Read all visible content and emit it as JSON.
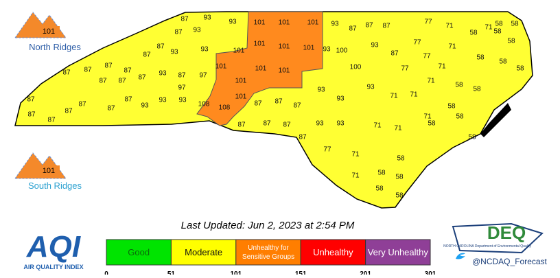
{
  "header": {
    "updated": "Last Updated: Jun 2, 2023 at 2:54 PM"
  },
  "ridges": [
    {
      "label": "North Ridges",
      "value": 101
    },
    {
      "label": "South Ridges",
      "value": 101
    }
  ],
  "legend": {
    "categories": [
      {
        "label": "Good",
        "color": "#00e400"
      },
      {
        "label": "Moderate",
        "color": "#ffff00"
      },
      {
        "label": "Unhealthy for Sensitive Groups",
        "color": "#ff7e00"
      },
      {
        "label": "Unhealthy",
        "color": "#ff0000"
      },
      {
        "label": "Very Unhealthy",
        "color": "#8f3f97"
      }
    ],
    "ticks": [
      0,
      51,
      101,
      151,
      201,
      301
    ]
  },
  "logos": {
    "aqi": "AQI",
    "aqi_sub": "AIR QUALITY INDEX",
    "deq": "DEQ",
    "deq_sub": "NORTH CAROLINA Department of Environmental Quality",
    "twitter": "@NCDAQ_Forecast"
  },
  "counties": [
    93,
    93,
    101,
    101,
    101,
    93,
    87,
    87,
    87,
    77,
    71,
    58,
    71,
    58,
    58,
    58,
    58,
    87,
    93,
    87,
    87,
    101,
    101,
    101,
    93,
    100,
    93,
    87,
    77,
    71,
    77,
    58,
    58,
    58,
    93,
    93,
    87,
    101,
    101,
    101,
    101,
    101,
    100,
    77,
    71,
    71,
    71,
    58,
    58,
    58,
    58,
    58,
    71,
    87,
    87,
    87,
    87,
    87,
    87,
    87,
    93,
    87,
    97,
    97,
    93,
    87,
    87,
    87,
    87,
    87,
    87,
    87,
    93,
    93,
    108,
    108,
    101,
    87,
    87,
    87,
    93,
    93,
    93,
    71,
    71,
    71,
    58,
    93,
    93,
    87,
    87,
    87,
    87,
    77,
    71,
    58,
    58,
    71,
    58,
    58,
    58
  ]
}
